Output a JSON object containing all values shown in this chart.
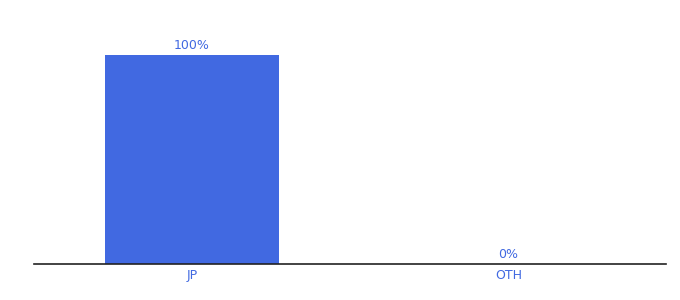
{
  "categories": [
    "JP",
    "OTH"
  ],
  "values": [
    100,
    0
  ],
  "bar_color": "#4169e1",
  "label_color": "#4169e1",
  "tick_color": "#4169e1",
  "axis_line_color": "#222222",
  "background_color": "#ffffff",
  "bar_labels": [
    "100%",
    "0%"
  ],
  "ylim": [
    0,
    115
  ],
  "xlabel_fontsize": 9,
  "label_fontsize": 9,
  "bar_width": 0.55
}
